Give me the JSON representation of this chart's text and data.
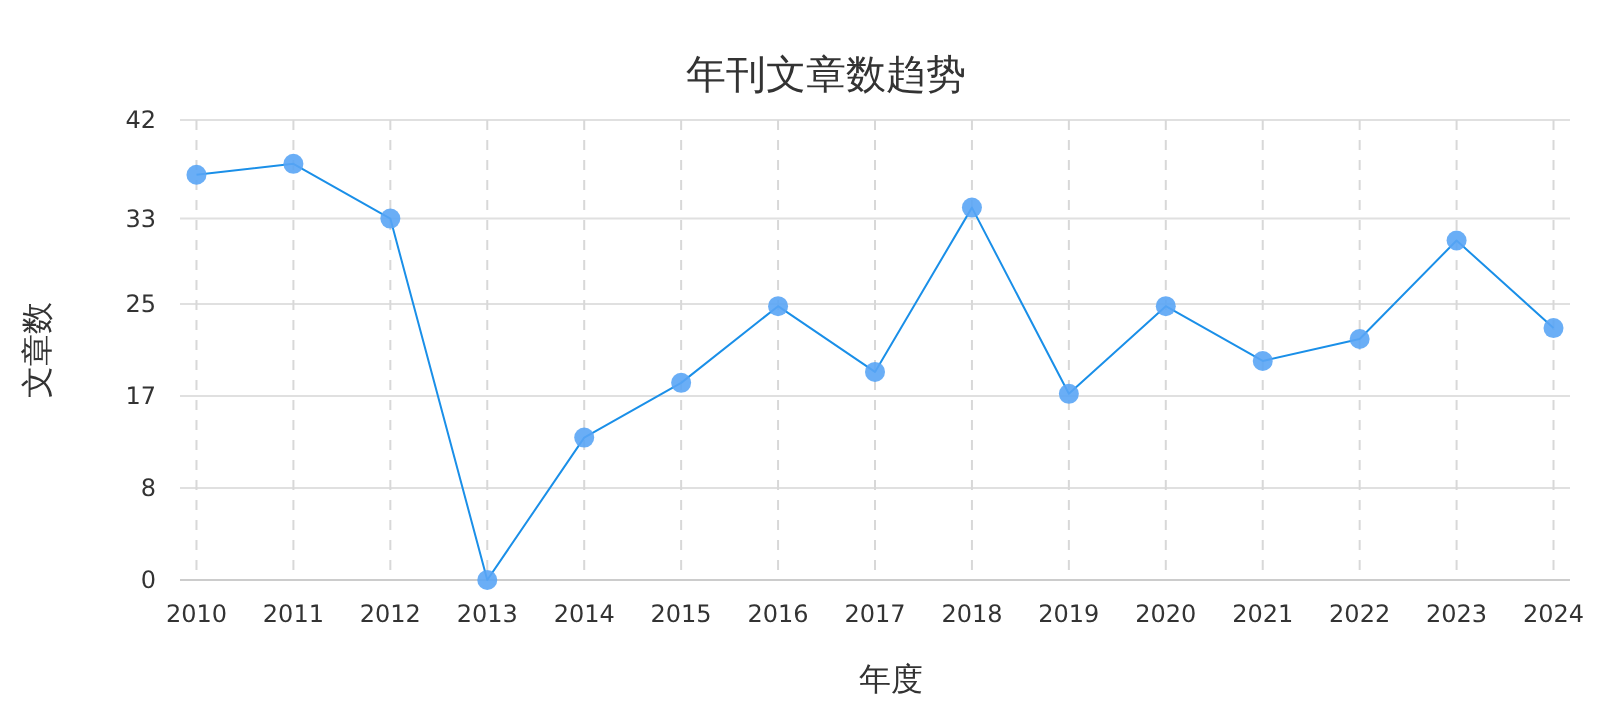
{
  "chart_data": {
    "type": "line",
    "title": "年刊文章数趋势",
    "xlabel": "年度",
    "ylabel": "文章数",
    "categories": [
      "2010",
      "2011",
      "2012",
      "2013",
      "2014",
      "2015",
      "2016",
      "2017",
      "2018",
      "2019",
      "2020",
      "2021",
      "2022",
      "2023",
      "2024"
    ],
    "series": [
      {
        "color": "#1a8fe8",
        "values": [
          37,
          38,
          33,
          0,
          13,
          18,
          25,
          19,
          34,
          17,
          25,
          20,
          22,
          31,
          23
        ]
      }
    ],
    "ylim": [
      0,
      42
    ],
    "yticks": [
      0,
      {
        "value": 8.4,
        "label": "8"
      },
      {
        "value": 16.8,
        "label": "17"
      },
      {
        "value": 25.2,
        "label": "25"
      },
      33,
      42
    ],
    "grid": true,
    "marker": "circle",
    "line_style": "solid"
  }
}
